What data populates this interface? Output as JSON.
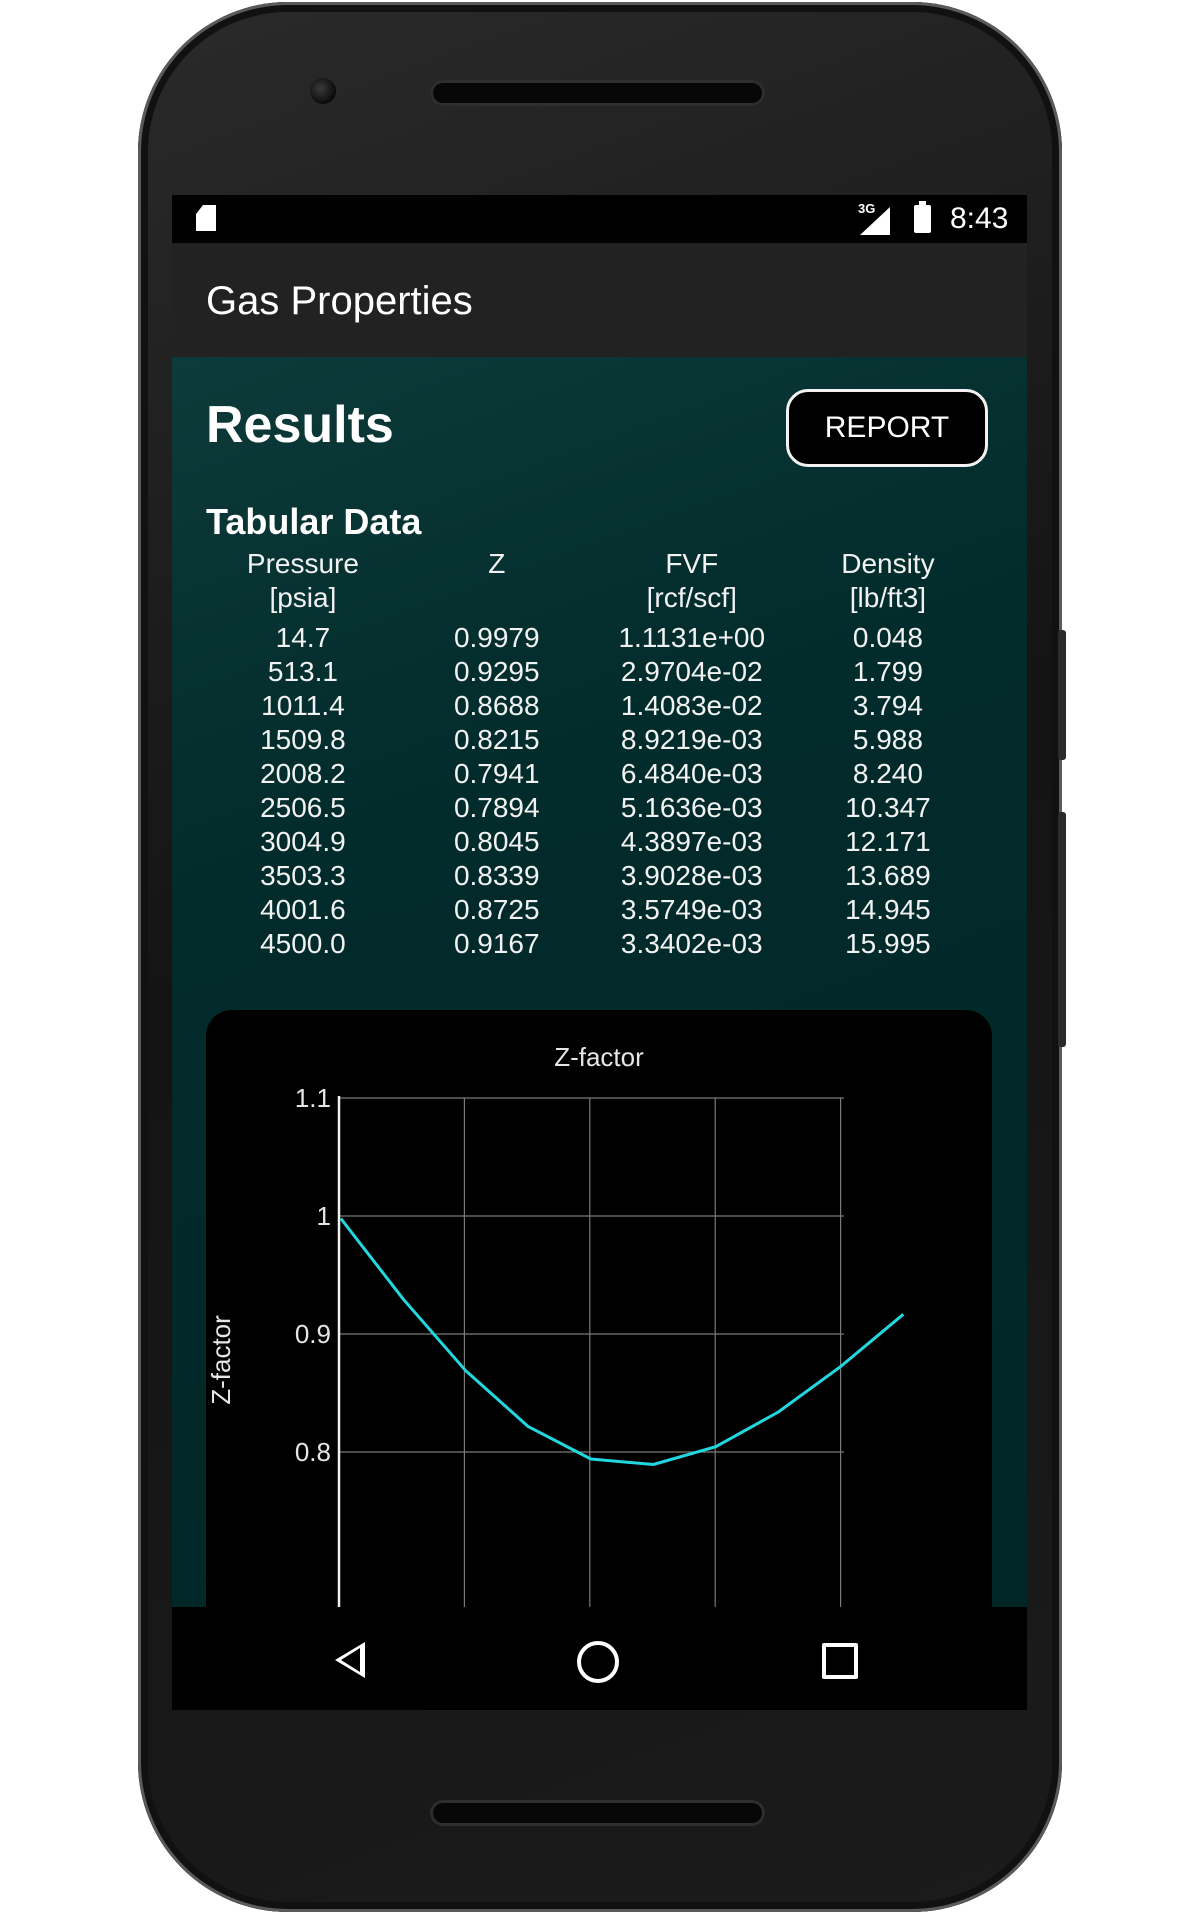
{
  "status_bar": {
    "network": "3G",
    "time": "8:43"
  },
  "app": {
    "title": "Gas Properties"
  },
  "results": {
    "heading": "Results",
    "report_label": "REPORT"
  },
  "tabular": {
    "heading": "Tabular Data",
    "columns": [
      {
        "name": "Pressure",
        "unit": "[psia]"
      },
      {
        "name": "Z",
        "unit": ""
      },
      {
        "name": "FVF",
        "unit": "[rcf/scf]"
      },
      {
        "name": "Density",
        "unit": "[lb/ft3]"
      }
    ],
    "rows": [
      [
        "14.7",
        "0.9979",
        "1.1131e+00",
        "0.048"
      ],
      [
        "513.1",
        "0.9295",
        "2.9704e-02",
        "1.799"
      ],
      [
        "1011.4",
        "0.8688",
        "1.4083e-02",
        "3.794"
      ],
      [
        "1509.8",
        "0.8215",
        "8.9219e-03",
        "5.988"
      ],
      [
        "2008.2",
        "0.7941",
        "6.4840e-03",
        "8.240"
      ],
      [
        "2506.5",
        "0.7894",
        "5.1636e-03",
        "10.347"
      ],
      [
        "3004.9",
        "0.8045",
        "4.3897e-03",
        "12.171"
      ],
      [
        "3503.3",
        "0.8339",
        "3.9028e-03",
        "13.689"
      ],
      [
        "4001.6",
        "0.8725",
        "3.5749e-03",
        "14.945"
      ],
      [
        "4500.0",
        "0.9167",
        "3.3402e-03",
        "15.995"
      ]
    ]
  },
  "chart_data": {
    "type": "line",
    "title": "Z-factor",
    "xlabel": "",
    "ylabel": "Z-factor",
    "ylim": [
      0.8,
      1.1
    ],
    "yticks": [
      "1.1",
      "1",
      "0.9",
      "0.8"
    ],
    "x": [
      14.7,
      513.1,
      1011.4,
      1509.8,
      2008.2,
      2506.5,
      3004.9,
      3503.3,
      4001.6,
      4500.0
    ],
    "series": [
      {
        "values": [
          0.9979,
          0.9295,
          0.8688,
          0.8215,
          0.7941,
          0.7894,
          0.8045,
          0.8339,
          0.8725,
          0.9167
        ]
      }
    ],
    "grid": true,
    "line_color": "#22d8e0"
  }
}
